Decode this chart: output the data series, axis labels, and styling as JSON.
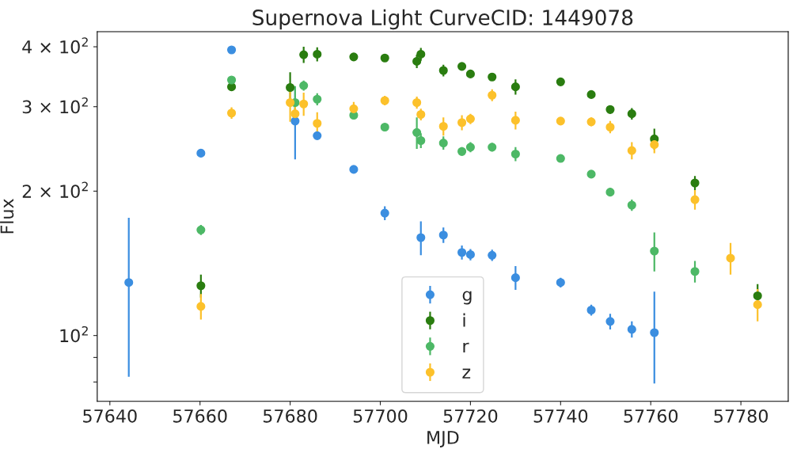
{
  "chart_data": {
    "type": "scatter",
    "title": "Supernova Light CurveCID: 1449078",
    "xlabel": "MJD",
    "ylabel": "Flux",
    "log": "y",
    "marker": "circle",
    "legend": "bottom",
    "grid": false,
    "xlim": [
      57637.2,
      57790.5
    ],
    "xticks": [
      57640,
      57660,
      57680,
      57700,
      57720,
      57740,
      57760,
      57780
    ],
    "ylim": [
      72.9,
      430
    ],
    "yticks": [
      {
        "value": 80,
        "label": null
      },
      {
        "value": 90,
        "label": null
      },
      {
        "value": 100,
        "label": "10$^{2}$"
      },
      {
        "value": 200,
        "label": "2 × 10$^{2}$"
      },
      {
        "value": 300,
        "label": "3 × 10$^{2}$"
      },
      {
        "value": 400,
        "label": "4 × 10$^{2}$"
      }
    ],
    "series": [
      {
        "name": "g",
        "color": "#3b8ee0",
        "x": [
          57644.2,
          57660.2,
          57667,
          57681.1,
          57686,
          57694.1,
          57701,
          57709,
          57714,
          57718.1,
          57720,
          57724.8,
          57730,
          57740,
          57746.8,
          57751,
          57755.8,
          57760.8
        ],
        "values": [
          129,
          240,
          394,
          280,
          261,
          222,
          180,
          160,
          162,
          149,
          147.5,
          147,
          132,
          129,
          113,
          107,
          103,
          101.4
        ],
        "errors": [
          47,
          null,
          null,
          47,
          null,
          null,
          6,
          13,
          6,
          5,
          4,
          4,
          7.5,
          3,
          3,
          4,
          4,
          22
        ]
      },
      {
        "name": "i",
        "color": "#2a7d10",
        "x": [
          57660.2,
          57667,
          57680,
          57683,
          57686,
          57694.1,
          57701,
          57708.1,
          57709,
          57714,
          57718.1,
          57720,
          57724.8,
          57730,
          57740,
          57746.8,
          57751,
          57755.8,
          57760.8,
          57769.8,
          57783.7
        ],
        "values": [
          127,
          330,
          329,
          385,
          386,
          381,
          379,
          373,
          386,
          357,
          364,
          351,
          346,
          330,
          338,
          318,
          296,
          290,
          257,
          208,
          121
        ],
        "errors": [
          7,
          null,
          25,
          15,
          13,
          5,
          4,
          12,
          12,
          10,
          6,
          5,
          6,
          12,
          null,
          null,
          6,
          8,
          13,
          7,
          7
        ]
      },
      {
        "name": "r",
        "color": "#4db866",
        "x": [
          57660.2,
          57667,
          57681.1,
          57683,
          57686,
          57694.1,
          57701,
          57708.1,
          57709,
          57714,
          57718.1,
          57720,
          57724.8,
          57730,
          57740,
          57746.8,
          57751,
          57755.8,
          57760.8,
          57769.8
        ],
        "values": [
          166,
          341,
          306,
          332,
          311,
          288,
          272,
          265,
          255,
          252,
          242,
          247,
          247,
          239,
          234,
          217,
          199,
          187,
          150,
          136
        ],
        "errors": [
          4,
          null,
          25,
          8,
          9,
          null,
          null,
          20,
          9,
          8,
          5,
          6,
          5,
          8,
          null,
          null,
          4,
          5,
          14,
          7
        ]
      },
      {
        "name": "z",
        "color": "#fcc12b",
        "x": [
          57660.2,
          57667,
          57680,
          57681.1,
          57683,
          57686,
          57694.1,
          57701,
          57708.1,
          57709,
          57714,
          57718.1,
          57720,
          57724.8,
          57730,
          57740,
          57746.8,
          57751,
          57755.8,
          57760.8,
          57769.8,
          57777.7,
          57783.7
        ],
        "values": [
          115,
          291,
          306,
          290,
          304,
          277,
          297,
          309,
          306,
          289,
          273,
          278,
          283,
          317,
          281,
          280,
          279,
          272,
          243,
          250,
          192,
          145,
          116
        ],
        "errors": [
          7,
          8,
          27,
          10,
          17,
          15,
          10,
          7,
          9,
          8,
          12,
          10,
          7,
          9,
          12,
          4,
          6,
          8,
          10,
          10,
          9,
          11,
          9
        ]
      }
    ]
  }
}
